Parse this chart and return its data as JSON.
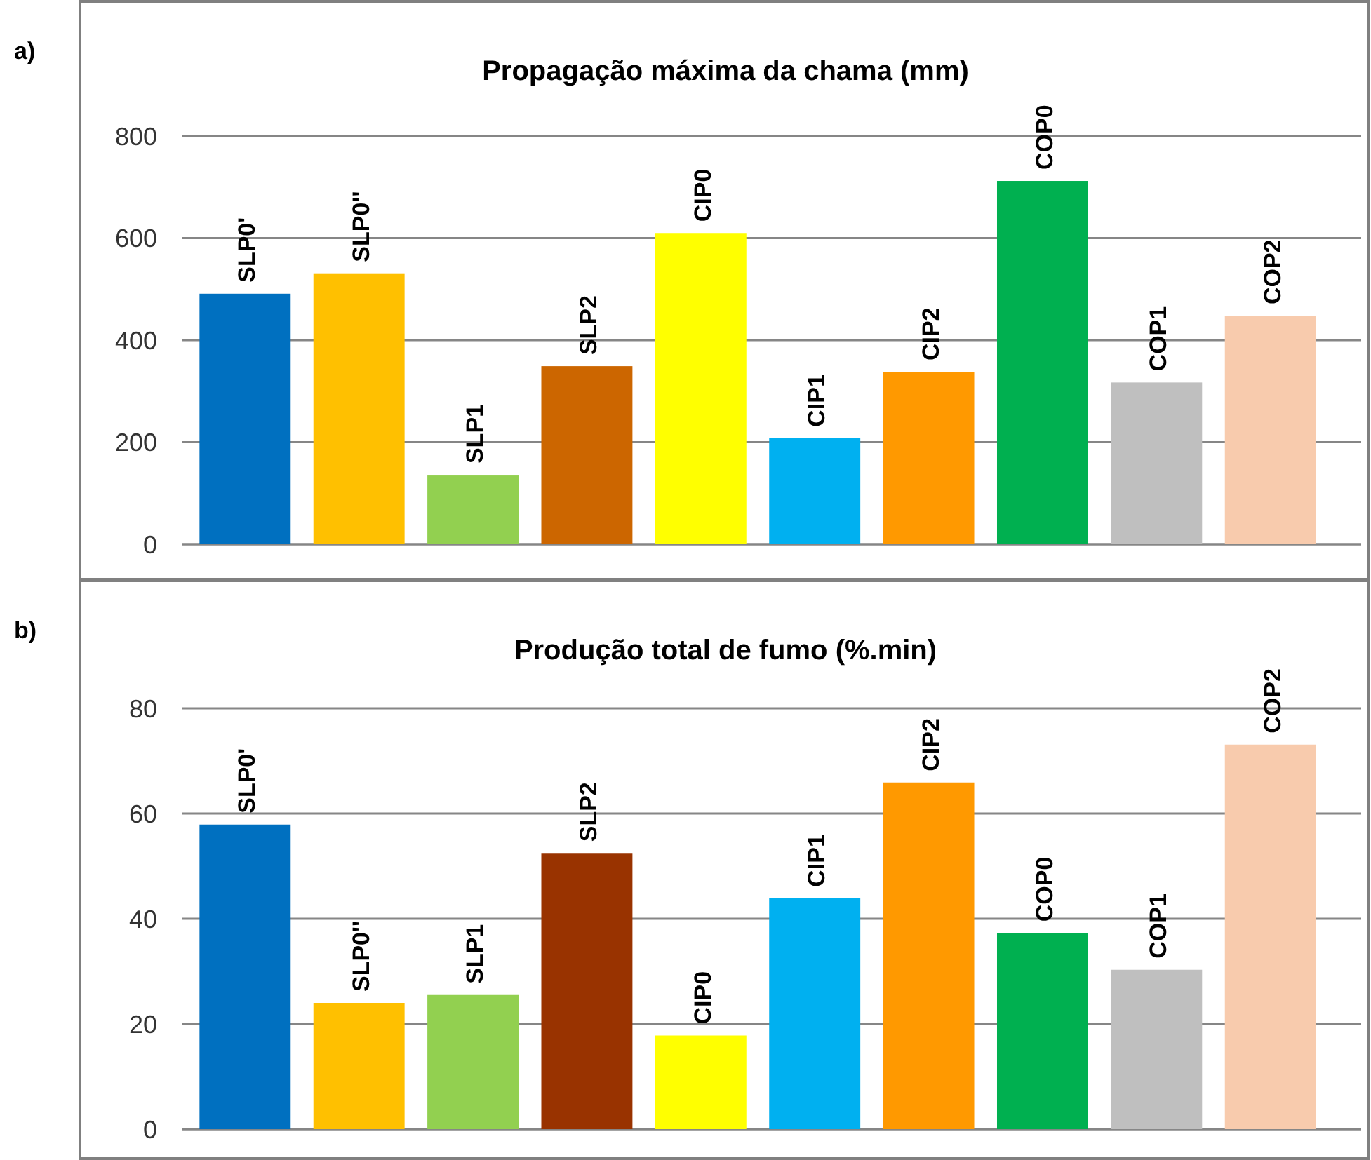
{
  "chart_data": [
    {
      "type": "bar",
      "title": "Propagação máxima da chama (mm)",
      "annotations": [
        "a)"
      ],
      "categories": [
        "SLP0'",
        "SLP0''",
        "SLP1",
        "SLP2",
        "CIP0",
        "CIP1",
        "CIP2",
        "COP0",
        "COP1",
        "COP2"
      ],
      "values": [
        491,
        531,
        136,
        349,
        610,
        208,
        338,
        712,
        317,
        448
      ],
      "colors": [
        "#0070c0",
        "#ffc000",
        "#92d050",
        "#cc6600",
        "#ffff00",
        "#00b0f0",
        "#ff9900",
        "#00b050",
        "#bfbfbf",
        "#f8cbad"
      ],
      "ylim": [
        0,
        800
      ],
      "yticks": [
        0,
        200,
        400,
        600,
        800
      ],
      "grid": "y"
    },
    {
      "type": "bar",
      "title": "Produção total de fumo (%.min)",
      "annotations": [
        "b)"
      ],
      "categories": [
        "SLP0'",
        "SLP0''",
        "SLP1",
        "SLP2",
        "CIP0",
        "CIP1",
        "CIP2",
        "COP0",
        "COP1",
        "COP2"
      ],
      "values": [
        57.9,
        24,
        25.5,
        52.5,
        17.8,
        43.9,
        65.9,
        37.3,
        30.3,
        73.1
      ],
      "colors": [
        "#0070c0",
        "#ffc000",
        "#92d050",
        "#993300",
        "#ffff00",
        "#00b0f0",
        "#ff9900",
        "#00b050",
        "#bfbfbf",
        "#f8cbad"
      ],
      "ylim": [
        0,
        80
      ],
      "yticks": [
        0,
        20,
        40,
        60,
        80
      ],
      "grid": "y"
    }
  ]
}
